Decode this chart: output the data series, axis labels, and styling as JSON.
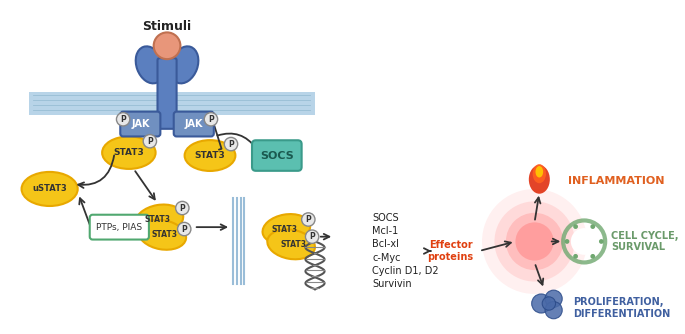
{
  "bg_color": "#ffffff",
  "membrane_color": "#b8d4e8",
  "membrane_stripe_color": "#8ab4cc",
  "receptor_color": "#5b7fbf",
  "ligand_color": "#e8967a",
  "jak_color": "#7090c0",
  "stat3_color": "#f5c518",
  "stat3_outline": "#e8a800",
  "ustat3_color": "#f5c518",
  "socs_box_color": "#5bbfb0",
  "ptps_box_color": "#a0d8b0",
  "p_circle_color": "#e8e8e8",
  "p_text_color": "#333333",
  "inflammation_color": "#e04010",
  "inflammation_text": "#e06020",
  "cell_cycle_color": "#70a870",
  "proliferation_color": "#4060a0",
  "proliferation_text": "#4060a0",
  "effector_glow_color": "#ff6060",
  "arrow_color": "#333333",
  "title": "Stimuli",
  "gene_list": [
    "SOCS",
    "Mcl-1",
    "Bcl-xl",
    "c-Myc",
    "Cyclin D1, D2",
    "Survivin"
  ],
  "effector_label": "Effector\nproteins",
  "inflammation_label": "INFLAMMATION",
  "cell_cycle_label": "CELL CYCLE,\nSURVIVAL",
  "proliferation_label": "PROLIFERATION,\nDIFFERENTIATION",
  "socs_label": "SOCS",
  "ptps_label": "PTPs, PIAS",
  "jak_label": "JAK",
  "stat3_label": "STAT3",
  "ustat3_label": "uSTAT3"
}
